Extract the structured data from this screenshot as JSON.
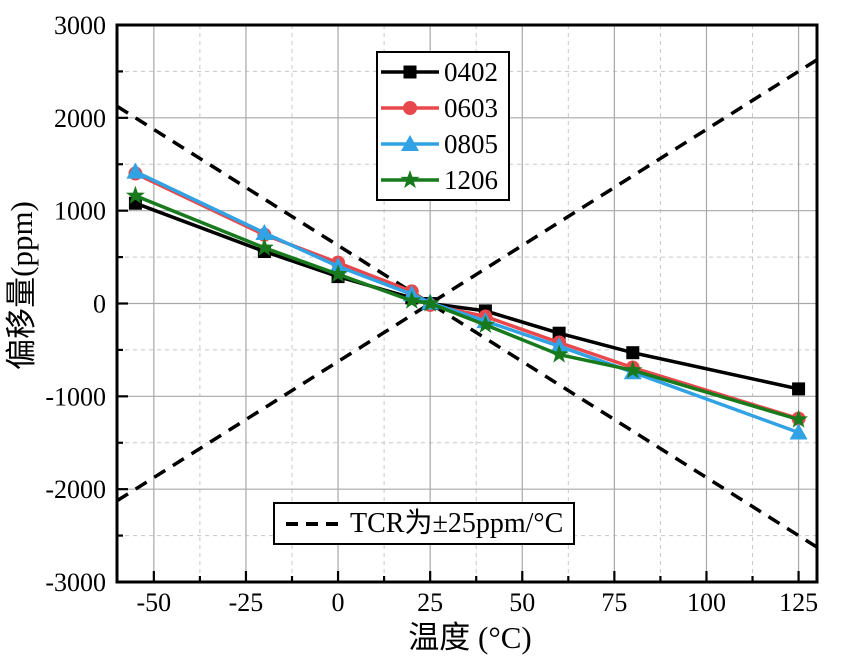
{
  "chart_data": {
    "type": "line",
    "title": "",
    "xlabel": "温度 (°C)",
    "ylabel": "偏移量(ppm)",
    "xlim": [
      -60,
      130
    ],
    "ylim": [
      -3000,
      3000
    ],
    "xticks": [
      -50,
      -25,
      0,
      25,
      50,
      75,
      100,
      125
    ],
    "xticks_minor": [
      -37.5,
      -12.5,
      12.5,
      37.5,
      62.5,
      87.5,
      112.5
    ],
    "yticks": [
      -3000,
      -2000,
      -1000,
      0,
      1000,
      2000,
      3000
    ],
    "yticks_minor": [
      -2500,
      -1500,
      -500,
      500,
      1500,
      2500
    ],
    "grid": {
      "major": true,
      "minor": true,
      "major_color": "#a8a8a8",
      "minor_color": "#c8c8c8"
    },
    "legend_position": "top-center",
    "x": [
      -55,
      -20,
      0,
      20,
      25,
      40,
      60,
      80,
      125
    ],
    "series": [
      {
        "name": "0402",
        "marker": "square",
        "color": "#000000",
        "values": [
          1080,
          560,
          290,
          60,
          0,
          -80,
          -320,
          -530,
          -920
        ]
      },
      {
        "name": "0603",
        "marker": "circle",
        "color": "#e8484b",
        "values": [
          1400,
          740,
          440,
          130,
          -15,
          -140,
          -420,
          -690,
          -1240
        ]
      },
      {
        "name": "0805",
        "marker": "triangle",
        "color": "#31a2e4",
        "values": [
          1420,
          760,
          400,
          100,
          10,
          -190,
          -460,
          -740,
          -1390
        ]
      },
      {
        "name": "1206",
        "marker": "star",
        "color": "#187a1c",
        "values": [
          1160,
          600,
          315,
          30,
          0,
          -230,
          -550,
          -720,
          -1250
        ]
      }
    ],
    "reference": {
      "label": "TCR为±25ppm/°C",
      "style": "dashed",
      "color": "#000000",
      "slope_ppm_per_degC": 25,
      "crossing_point": [
        25,
        0
      ],
      "lines": [
        {
          "points": [
            [
              -60,
              2125
            ],
            [
              130,
              -2625
            ]
          ]
        },
        {
          "points": [
            [
              -60,
              -2125
            ],
            [
              130,
              2625
            ]
          ]
        }
      ]
    }
  }
}
